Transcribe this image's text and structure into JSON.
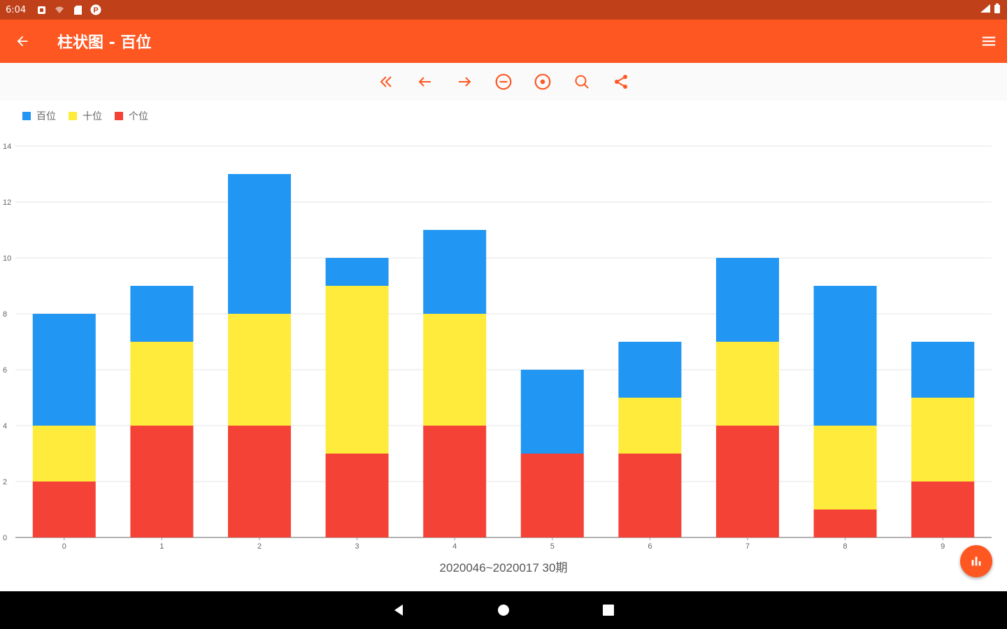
{
  "status": {
    "time": "6:04"
  },
  "app_bar": {
    "title": "柱状图 - 百位",
    "back_icon": "arrow-back-icon",
    "menu_icon": "menu-icon"
  },
  "toolbar": {
    "items": [
      {
        "name": "first-button",
        "icon": "double-chevron-left-icon"
      },
      {
        "name": "prev-button",
        "icon": "arrow-left-icon"
      },
      {
        "name": "next-button",
        "icon": "arrow-right-icon"
      },
      {
        "name": "zoom-out-button",
        "icon": "minus-circle-icon"
      },
      {
        "name": "zoom-in-button",
        "icon": "plus-circle-icon"
      },
      {
        "name": "search-button",
        "icon": "search-icon"
      },
      {
        "name": "share-button",
        "icon": "share-icon"
      }
    ]
  },
  "colors": {
    "accent": "#FF5722",
    "status_bar": "#BF4019",
    "blue": "#2196F3",
    "yellow": "#FFEB3B",
    "red": "#F44336"
  },
  "chart_data": {
    "type": "bar",
    "stacked": true,
    "categories": [
      "0",
      "1",
      "2",
      "3",
      "4",
      "5",
      "6",
      "7",
      "8",
      "9"
    ],
    "series": [
      {
        "name": "个位",
        "color": "#F44336",
        "values": [
          2,
          4,
          4,
          3,
          4,
          3,
          3,
          4,
          1,
          2
        ]
      },
      {
        "name": "十位",
        "color": "#FFEB3B",
        "values": [
          2,
          3,
          4,
          6,
          4,
          0,
          2,
          3,
          3,
          3
        ]
      },
      {
        "name": "百位",
        "color": "#2196F3",
        "values": [
          4,
          2,
          5,
          1,
          3,
          3,
          2,
          3,
          5,
          2
        ]
      }
    ],
    "legend_order": [
      "百位",
      "十位",
      "个位"
    ],
    "legend_position": "top-left",
    "xlabel": "2020046~2020017  30期",
    "ylabel": "",
    "ylim": [
      0,
      14
    ],
    "yticks": [
      "0",
      "2",
      "4",
      "6",
      "8",
      "10",
      "12",
      "14"
    ],
    "grid": true
  }
}
